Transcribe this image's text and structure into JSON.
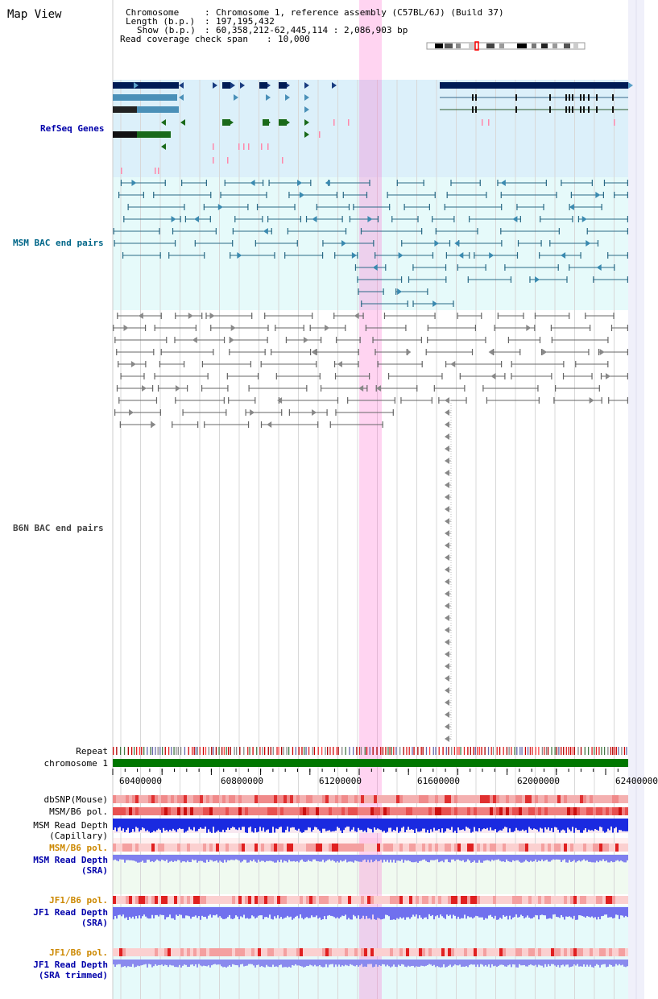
{
  "view_title": "Map View",
  "info": {
    "chromosome_key": "Chromosome",
    "chromosome_val": "Chromosome 1, reference assembly (C57BL/6J) (Build 37)",
    "length_key": "Length (b.p.)",
    "length_val": "197,195,432",
    "show_key": "Show (b.p.)",
    "show_val": "60,358,212-62,445,114 : 2,086,903 bp",
    "span_key": "Read coverage check span",
    "span_val": "10,000"
  },
  "tracks": {
    "refseq": "RefSeq Genes",
    "msm_bac": "MSM BAC end pairs",
    "b6n_bac": "B6N BAC end pairs",
    "repeat": "Repeat",
    "chromosome": "chromosome 1",
    "dbsnp": "dbSNP(Mouse)",
    "msm_b6_pol_1": "MSM/B6 pol.",
    "msm_depth_cap_1": "MSM Read Depth",
    "msm_depth_cap_2": "(Capillary)",
    "msm_b6_pol_2": "MSM/B6 pol.",
    "msm_depth_sra_1": "MSM Read Depth",
    "msm_depth_sra_2": "(SRA)",
    "jf1_b6_pol_1": "JF1/B6 pol.",
    "jf1_depth_sra_1": "JF1 Read Depth",
    "jf1_depth_sra_2": "(SRA)",
    "jf1_b6_pol_2": "JF1/B6 pol.",
    "jf1_depth_trim_1": "JF1 Read Depth",
    "jf1_depth_trim_2": "(SRA trimmed)"
  },
  "axis": {
    "ticks": [
      "60400000",
      "60800000",
      "61200000",
      "61600000",
      "62000000",
      "62400000"
    ]
  },
  "colors": {
    "refseq_label": "#0000aa",
    "msm_label": "#006688",
    "b6n_label": "#333333",
    "msm_pol_label": "#cc8800",
    "jf1_pol_label": "#cc8800",
    "depth_label": "#0000aa",
    "highlight": "#ff66cc",
    "chromosome_bar": "#007700"
  }
}
